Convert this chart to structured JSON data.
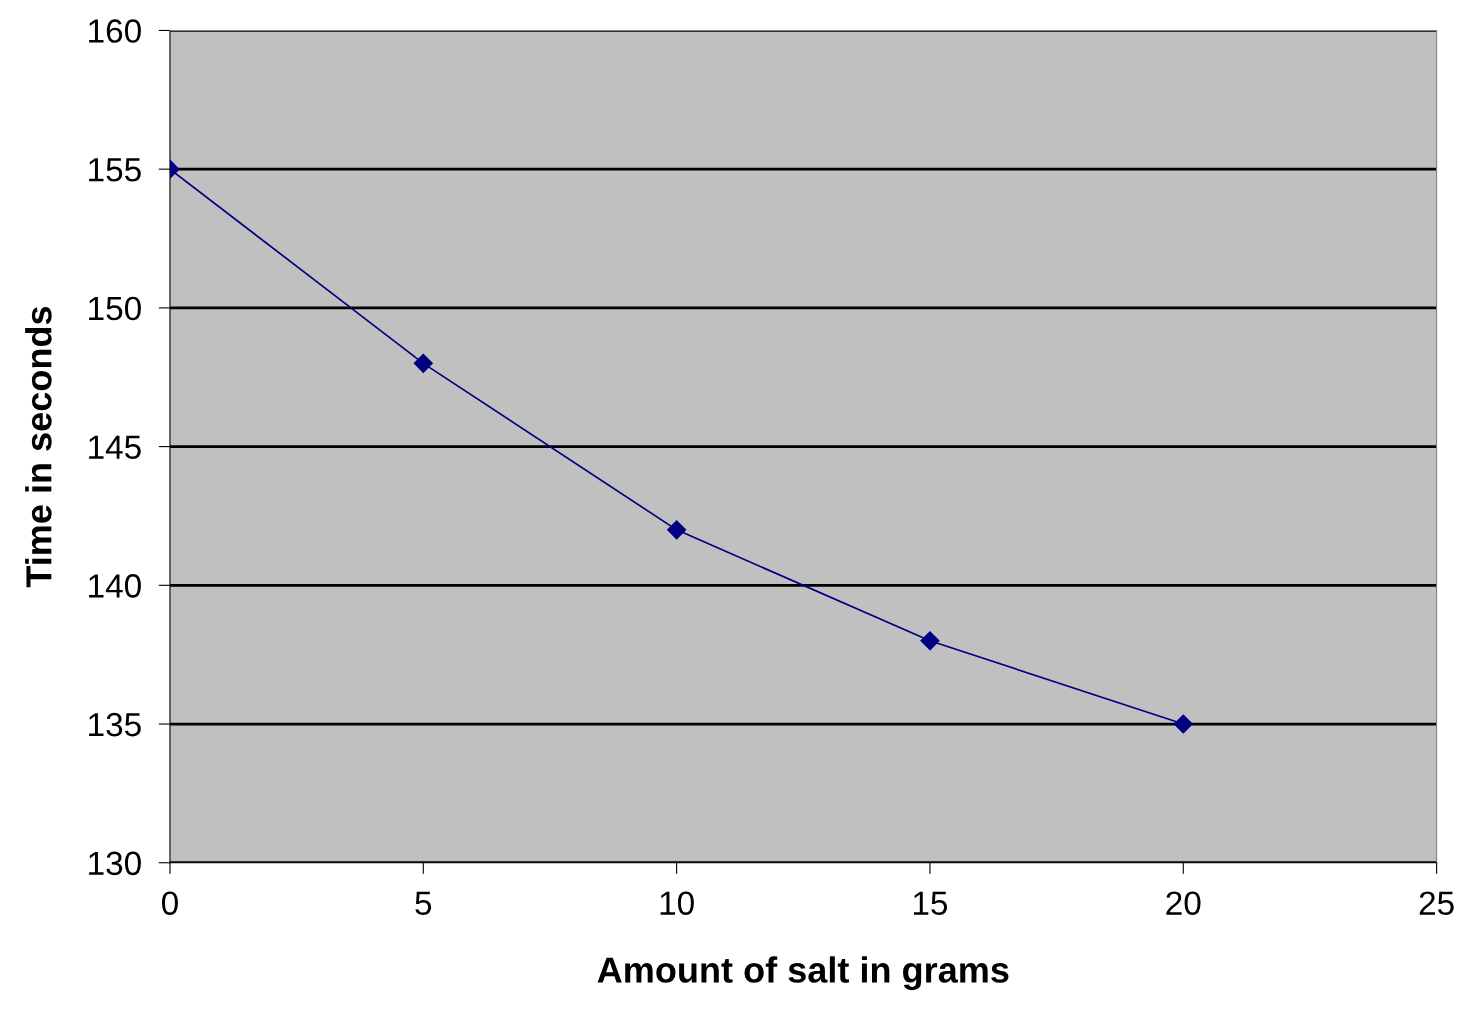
{
  "chart_data": {
    "type": "line",
    "xlabel": "Amount of salt in grams",
    "ylabel": "Time in seconds",
    "x": [
      0,
      5,
      10,
      15,
      20
    ],
    "series": [
      {
        "color": "#000080",
        "values": [
          155,
          148,
          142,
          138,
          135
        ]
      }
    ],
    "xlim": [
      0,
      25
    ],
    "xticks": [
      0,
      5,
      10,
      15,
      20,
      25
    ],
    "ylim": [
      130,
      160
    ],
    "yticks": [
      130,
      135,
      140,
      145,
      150,
      155,
      160
    ],
    "grid": "y",
    "marker": "diamond",
    "line_style": "solid",
    "legend": false
  }
}
